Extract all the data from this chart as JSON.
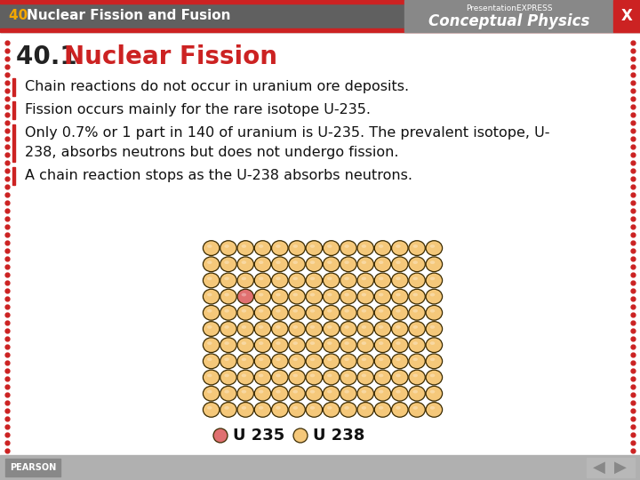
{
  "title_bar_bg": "#606060",
  "title_bar_accent_top": "#cc2222",
  "title_bar_accent_bottom": "#cc2222",
  "title_number_color": "#f5a800",
  "title_text_color": "#ffffff",
  "header_right_bg": "#888888",
  "header_right_text1": "Presentation EXPRESS",
  "header_right_text2": "Conceptual Physics",
  "x_button_bg": "#cc2222",
  "section_title": "40.1 ",
  "section_subtitle": "Nuclear Fission",
  "section_number_color": "#222222",
  "section_title_color": "#cc2222",
  "body_bg": "#ffffff",
  "bullet_lines": [
    "Chain reactions do not occur in uranium ore deposits.",
    "Fission occurs mainly for the rare isotope U-235.",
    "Only 0.7% or 1 part in 140 of uranium is U-235. The prevalent isotope, U-\n238, absorbs neutrons but does not undergo fission.",
    "A chain reaction stops as the U-238 absorbs neutrons."
  ],
  "left_bar_color": "#cc2222",
  "text_color": "#111111",
  "grid_rows": 11,
  "grid_cols": 14,
  "u238_color": "#f5c87a",
  "u238_edge": "#3a2a00",
  "u235_color": "#e07070",
  "u235_edge": "#3a0000",
  "u235_row": 3,
  "u235_col": 2,
  "legend_u235_label": "U 235",
  "legend_u238_label": "U 238",
  "border_dot_color": "#cc2222",
  "footer_bg": "#b0b0b0",
  "pearson_label": "PEARSON",
  "nav_bg": "#b8b8b8"
}
